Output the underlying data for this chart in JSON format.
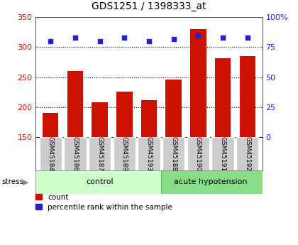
{
  "title": "GDS1251 / 1398333_at",
  "samples": [
    "GSM45184",
    "GSM45186",
    "GSM45187",
    "GSM45189",
    "GSM45193",
    "GSM45188",
    "GSM45190",
    "GSM45191",
    "GSM45192"
  ],
  "counts": [
    191,
    260,
    208,
    226,
    212,
    246,
    330,
    282,
    285
  ],
  "percentile_ranks": [
    80,
    83,
    80,
    83,
    80,
    82,
    85,
    83,
    83
  ],
  "groups": [
    "control",
    "control",
    "control",
    "control",
    "control",
    "acute hypotension",
    "acute hypotension",
    "acute hypotension",
    "acute hypotension"
  ],
  "group_labels": [
    "control",
    "acute hypotension"
  ],
  "group_colors": [
    "#ccffcc",
    "#88dd88"
  ],
  "bar_color": "#cc1100",
  "dot_color": "#2222cc",
  "ylim_left": [
    150,
    350
  ],
  "yticks_left": [
    150,
    200,
    250,
    300,
    350
  ],
  "ylim_right": [
    0,
    100
  ],
  "yticks_right": [
    0,
    25,
    50,
    75,
    100
  ],
  "ylabel_left_color": "#cc1100",
  "ylabel_right_color": "#2222cc",
  "grid_lines": [
    200,
    250,
    300
  ],
  "bar_width": 0.65,
  "stress_label": "stress",
  "legend_count_label": "count",
  "legend_pct_label": "percentile rank within the sample",
  "background_color": "#ffffff",
  "plot_bg_color": "#ffffff",
  "xticklabel_bg": "#cccccc"
}
